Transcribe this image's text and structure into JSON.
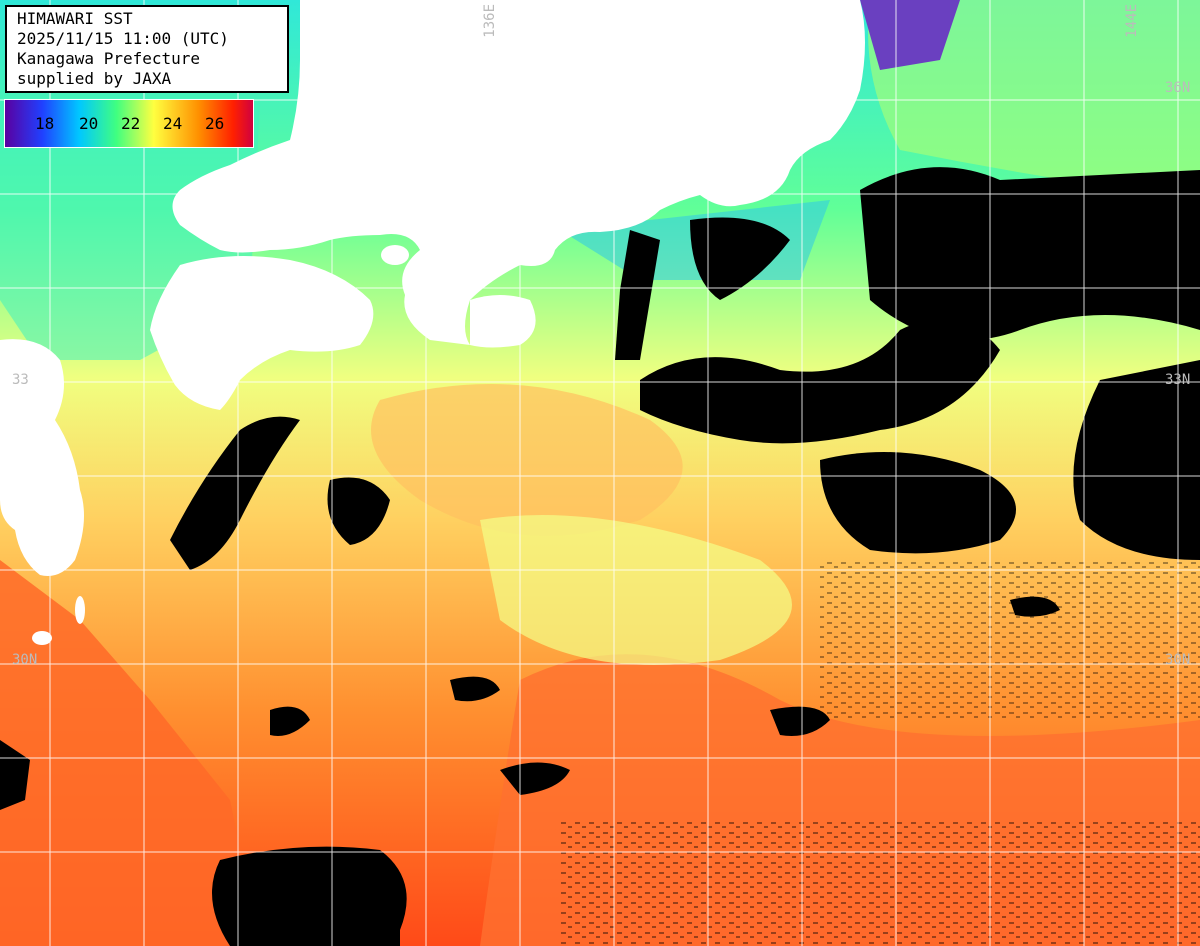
{
  "info": {
    "line1": "HIMAWARI SST",
    "line2": "2025/11/15 11:00 (UTC)",
    "line3": "Kanagawa Prefecture",
    "line4": "supplied by JAXA"
  },
  "legend": {
    "ticks": [
      "18",
      "20",
      "22",
      "24",
      "26"
    ],
    "colors": [
      "#5a00a0",
      "#1e3cff",
      "#00c8ff",
      "#40ff80",
      "#ffff40",
      "#ff9000",
      "#ff2000",
      "#e00030"
    ]
  },
  "grid_labels": {
    "lon_136": "136E",
    "lon_144": "144E",
    "lat_36": "36N",
    "lat_33_left": "33",
    "lat_33_right": "33N",
    "lat_30_left": "30N",
    "lat_30_right": "30N"
  },
  "colors": {
    "land": "#ffffff",
    "cloud": "#000000",
    "grid": "#ffffff",
    "cold": "#40f0e0",
    "cool": "#60ff90",
    "mild": "#f0ff80",
    "warm": "#ffb040",
    "hot": "#ff5020"
  }
}
